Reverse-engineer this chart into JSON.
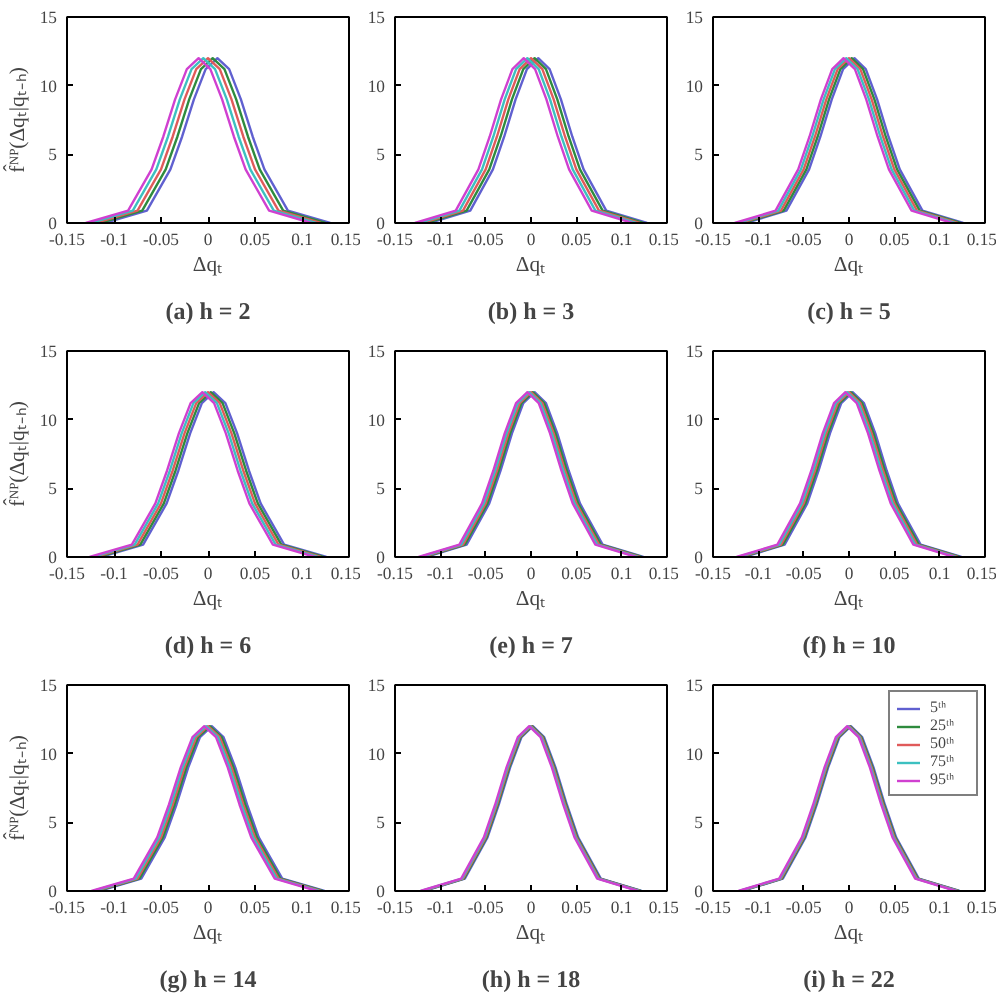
{
  "chart_data": [
    {
      "type": "line",
      "title": "(a)",
      "subtitle": "h = 2",
      "xlabel": "Δqₜ",
      "ylabel": "f̂ᴺᴾ(Δqₜ|qₜ₋ₕ)",
      "xlim": [
        -0.15,
        0.15
      ],
      "ylim": [
        0,
        15
      ],
      "xticks": [
        -0.15,
        -0.1,
        -0.05,
        0,
        0.05,
        0.1,
        0.15
      ],
      "yticks": [
        0,
        5,
        10,
        15
      ],
      "series": [
        {
          "color": "#6060d0",
          "x": [
            -0.11,
            -0.065,
            -0.04,
            -0.0275,
            -0.015,
            -0.0025,
            0.01,
            0.0225,
            0.035,
            0.0475,
            0.06,
            0.085,
            0.13
          ],
          "values": [
            0,
            0.9,
            3.9,
            6.3,
            9.0,
            11.2,
            12,
            11.2,
            9.0,
            6.3,
            3.9,
            0.9,
            0
          ]
        },
        {
          "color": "#2e8b3e",
          "x": [
            -0.115,
            -0.07,
            -0.045,
            -0.0325,
            -0.02,
            -0.0075,
            0.005,
            0.0175,
            0.03,
            0.0425,
            0.055,
            0.08,
            0.125
          ],
          "values": [
            0,
            0.9,
            3.9,
            6.3,
            9.0,
            11.2,
            12,
            11.2,
            9.0,
            6.3,
            3.9,
            0.9,
            0
          ]
        },
        {
          "color": "#e05a5a",
          "x": [
            -0.12,
            -0.075,
            -0.05,
            -0.0375,
            -0.025,
            -0.0125,
            0,
            0.0125,
            0.025,
            0.0375,
            0.05,
            0.075,
            0.12
          ],
          "values": [
            0,
            0.9,
            3.9,
            6.3,
            9.0,
            11.2,
            12,
            11.2,
            9.0,
            6.3,
            3.9,
            0.9,
            0
          ]
        },
        {
          "color": "#3cc0c0",
          "x": [
            -0.125,
            -0.08,
            -0.055,
            -0.0425,
            -0.03,
            -0.0175,
            -0.005,
            0.0075,
            0.02,
            0.0325,
            0.045,
            0.07,
            0.115
          ],
          "values": [
            0,
            0.9,
            3.9,
            6.3,
            9.0,
            11.2,
            12,
            11.2,
            9.0,
            6.3,
            3.9,
            0.9,
            0
          ]
        },
        {
          "color": "#d040d0",
          "x": [
            -0.13,
            -0.085,
            -0.06,
            -0.0475,
            -0.035,
            -0.0225,
            -0.01,
            0.0025,
            0.015,
            0.0275,
            0.04,
            0.065,
            0.11
          ],
          "values": [
            0,
            0.9,
            3.9,
            6.3,
            9.0,
            11.2,
            12,
            11.2,
            9.0,
            6.3,
            3.9,
            0.9,
            0
          ]
        }
      ]
    },
    {
      "type": "line",
      "title": "(b)",
      "subtitle": "h = 3",
      "xlabel": "Δqₜ",
      "xlim": [
        -0.15,
        0.15
      ],
      "ylim": [
        0,
        15
      ],
      "xticks": [
        -0.15,
        -0.1,
        -0.05,
        0,
        0.05,
        0.1,
        0.15
      ],
      "yticks": [
        0,
        5,
        10,
        15
      ],
      "series": [
        {
          "color": "#6060d0",
          "x": [
            -0.112,
            -0.067,
            -0.042,
            -0.0295,
            -0.017,
            -0.0045,
            0.008,
            0.0205,
            0.033,
            0.0455,
            0.058,
            0.083,
            0.128
          ],
          "values": [
            0,
            0.9,
            3.9,
            6.3,
            9.0,
            11.2,
            12,
            11.2,
            9.0,
            6.3,
            3.9,
            0.9,
            0
          ]
        },
        {
          "color": "#2e8b3e",
          "x": [
            -0.116,
            -0.071,
            -0.046,
            -0.0335,
            -0.021,
            -0.0085,
            0.004,
            0.0165,
            0.029,
            0.0415,
            0.054,
            0.079,
            0.124
          ],
          "values": [
            0,
            0.9,
            3.9,
            6.3,
            9.0,
            11.2,
            12,
            11.2,
            9.0,
            6.3,
            3.9,
            0.9,
            0
          ]
        },
        {
          "color": "#e05a5a",
          "x": [
            -0.12,
            -0.075,
            -0.05,
            -0.0375,
            -0.025,
            -0.0125,
            0,
            0.0125,
            0.025,
            0.0375,
            0.05,
            0.075,
            0.12
          ],
          "values": [
            0,
            0.9,
            3.9,
            6.3,
            9.0,
            11.2,
            12,
            11.2,
            9.0,
            6.3,
            3.9,
            0.9,
            0
          ]
        },
        {
          "color": "#3cc0c0",
          "x": [
            -0.124,
            -0.079,
            -0.054,
            -0.0415,
            -0.029,
            -0.0165,
            -0.004,
            0.0085,
            0.021,
            0.0335,
            0.046,
            0.071,
            0.116
          ],
          "values": [
            0,
            0.9,
            3.9,
            6.3,
            9.0,
            11.2,
            12,
            11.2,
            9.0,
            6.3,
            3.9,
            0.9,
            0
          ]
        },
        {
          "color": "#d040d0",
          "x": [
            -0.128,
            -0.083,
            -0.058,
            -0.0455,
            -0.033,
            -0.0205,
            -0.008,
            0.0045,
            0.017,
            0.0295,
            0.042,
            0.067,
            0.112
          ],
          "values": [
            0,
            0.9,
            3.9,
            6.3,
            9.0,
            11.2,
            12,
            11.2,
            9.0,
            6.3,
            3.9,
            0.9,
            0
          ]
        }
      ]
    },
    {
      "type": "line",
      "title": "(c)",
      "subtitle": "h = 5",
      "xlabel": "Δqₜ",
      "xlim": [
        -0.15,
        0.15
      ],
      "ylim": [
        0,
        15
      ],
      "xticks": [
        -0.15,
        -0.1,
        -0.05,
        0,
        0.05,
        0.1,
        0.15
      ],
      "yticks": [
        0,
        5,
        10,
        15
      ],
      "series": [
        {
          "color": "#6060d0",
          "x": [
            -0.114,
            -0.069,
            -0.044,
            -0.0315,
            -0.019,
            -0.0065,
            0.006,
            0.0185,
            0.031,
            0.0435,
            0.056,
            0.081,
            0.126
          ],
          "values": [
            0,
            0.9,
            3.9,
            6.3,
            9.0,
            11.2,
            12,
            11.2,
            9.0,
            6.3,
            3.9,
            0.9,
            0
          ]
        },
        {
          "color": "#2e8b3e",
          "x": [
            -0.117,
            -0.072,
            -0.047,
            -0.0345,
            -0.022,
            -0.0095,
            0.003,
            0.0155,
            0.028,
            0.0405,
            0.053,
            0.078,
            0.123
          ],
          "values": [
            0,
            0.9,
            3.9,
            6.3,
            9.0,
            11.2,
            12,
            11.2,
            9.0,
            6.3,
            3.9,
            0.9,
            0
          ]
        },
        {
          "color": "#e05a5a",
          "x": [
            -0.12,
            -0.075,
            -0.05,
            -0.0375,
            -0.025,
            -0.0125,
            0,
            0.0125,
            0.025,
            0.0375,
            0.05,
            0.075,
            0.12
          ],
          "values": [
            0,
            0.9,
            3.9,
            6.3,
            9.0,
            11.2,
            12,
            11.2,
            9.0,
            6.3,
            3.9,
            0.9,
            0
          ]
        },
        {
          "color": "#3cc0c0",
          "x": [
            -0.123,
            -0.078,
            -0.053,
            -0.0405,
            -0.028,
            -0.0155,
            -0.003,
            0.0095,
            0.022,
            0.0345,
            0.047,
            0.072,
            0.117
          ],
          "values": [
            0,
            0.9,
            3.9,
            6.3,
            9.0,
            11.2,
            12,
            11.2,
            9.0,
            6.3,
            3.9,
            0.9,
            0
          ]
        },
        {
          "color": "#d040d0",
          "x": [
            -0.126,
            -0.081,
            -0.056,
            -0.0435,
            -0.031,
            -0.0185,
            -0.006,
            0.0065,
            0.019,
            0.0315,
            0.044,
            0.069,
            0.114
          ],
          "values": [
            0,
            0.9,
            3.9,
            6.3,
            9.0,
            11.2,
            12,
            11.2,
            9.0,
            6.3,
            3.9,
            0.9,
            0
          ]
        }
      ]
    },
    {
      "type": "line",
      "title": "(d)",
      "subtitle": "h = 6",
      "xlabel": "Δqₜ",
      "ylabel": "f̂ᴺᴾ(Δqₜ|qₜ₋ₕ)",
      "xlim": [
        -0.15,
        0.15
      ],
      "ylim": [
        0,
        15
      ],
      "xticks": [
        -0.15,
        -0.1,
        -0.05,
        0,
        0.05,
        0.1,
        0.15
      ],
      "yticks": [
        0,
        5,
        10,
        15
      ],
      "series": [
        {
          "color": "#6060d0",
          "x": [
            -0.114,
            -0.069,
            -0.044,
            -0.0315,
            -0.019,
            -0.0065,
            0.006,
            0.0185,
            0.031,
            0.0435,
            0.056,
            0.081,
            0.126
          ],
          "values": [
            0,
            0.9,
            3.9,
            6.3,
            9.0,
            11.2,
            12,
            11.2,
            9.0,
            6.3,
            3.9,
            0.9,
            0
          ]
        },
        {
          "color": "#2e8b3e",
          "x": [
            -0.117,
            -0.072,
            -0.047,
            -0.0345,
            -0.022,
            -0.0095,
            0.003,
            0.0155,
            0.028,
            0.0405,
            0.053,
            0.078,
            0.123
          ],
          "values": [
            0,
            0.9,
            3.9,
            6.3,
            9.0,
            11.2,
            12,
            11.2,
            9.0,
            6.3,
            3.9,
            0.9,
            0
          ]
        },
        {
          "color": "#e05a5a",
          "x": [
            -0.12,
            -0.075,
            -0.05,
            -0.0375,
            -0.025,
            -0.0125,
            0,
            0.0125,
            0.025,
            0.0375,
            0.05,
            0.075,
            0.12
          ],
          "values": [
            0,
            0.9,
            3.9,
            6.3,
            9.0,
            11.2,
            12,
            11.2,
            9.0,
            6.3,
            3.9,
            0.9,
            0
          ]
        },
        {
          "color": "#3cc0c0",
          "x": [
            -0.123,
            -0.078,
            -0.053,
            -0.0405,
            -0.028,
            -0.0155,
            -0.003,
            0.0095,
            0.022,
            0.0345,
            0.047,
            0.072,
            0.117
          ],
          "values": [
            0,
            0.9,
            3.9,
            6.3,
            9.0,
            11.2,
            12,
            11.2,
            9.0,
            6.3,
            3.9,
            0.9,
            0
          ]
        },
        {
          "color": "#d040d0",
          "x": [
            -0.126,
            -0.081,
            -0.056,
            -0.0435,
            -0.031,
            -0.0185,
            -0.006,
            0.0065,
            0.019,
            0.0315,
            0.044,
            0.069,
            0.114
          ],
          "values": [
            0,
            0.9,
            3.9,
            6.3,
            9.0,
            11.2,
            12,
            11.2,
            9.0,
            6.3,
            3.9,
            0.9,
            0
          ]
        }
      ]
    },
    {
      "type": "line",
      "title": "(e)",
      "subtitle": "h = 7",
      "xlabel": "Δqₜ",
      "xlim": [
        -0.15,
        0.15
      ],
      "ylim": [
        0,
        15
      ],
      "xticks": [
        -0.15,
        -0.1,
        -0.05,
        0,
        0.05,
        0.1,
        0.15
      ],
      "yticks": [
        0,
        5,
        10,
        15
      ],
      "series": [
        {
          "color": "#6060d0",
          "x": [
            -0.116,
            -0.071,
            -0.046,
            -0.0335,
            -0.021,
            -0.0085,
            0.004,
            0.0165,
            0.029,
            0.0415,
            0.054,
            0.079,
            0.124
          ],
          "values": [
            0,
            0.9,
            3.9,
            6.3,
            9.0,
            11.2,
            12,
            11.2,
            9.0,
            6.3,
            3.9,
            0.9,
            0
          ]
        },
        {
          "color": "#2e8b3e",
          "x": [
            -0.118,
            -0.073,
            -0.048,
            -0.0355,
            -0.023,
            -0.0105,
            0.002,
            0.0145,
            0.027,
            0.0395,
            0.052,
            0.077,
            0.122
          ],
          "values": [
            0,
            0.9,
            3.9,
            6.3,
            9.0,
            11.2,
            12,
            11.2,
            9.0,
            6.3,
            3.9,
            0.9,
            0
          ]
        },
        {
          "color": "#e05a5a",
          "x": [
            -0.12,
            -0.075,
            -0.05,
            -0.0375,
            -0.025,
            -0.0125,
            0,
            0.0125,
            0.025,
            0.0375,
            0.05,
            0.075,
            0.12
          ],
          "values": [
            0,
            0.9,
            3.9,
            6.3,
            9.0,
            11.2,
            12,
            11.2,
            9.0,
            6.3,
            3.9,
            0.9,
            0
          ]
        },
        {
          "color": "#3cc0c0",
          "x": [
            -0.122,
            -0.077,
            -0.052,
            -0.0395,
            -0.027,
            -0.0145,
            -0.002,
            0.0105,
            0.023,
            0.0355,
            0.048,
            0.073,
            0.118
          ],
          "values": [
            0,
            0.9,
            3.9,
            6.3,
            9.0,
            11.2,
            12,
            11.2,
            9.0,
            6.3,
            3.9,
            0.9,
            0
          ]
        },
        {
          "color": "#d040d0",
          "x": [
            -0.124,
            -0.079,
            -0.054,
            -0.0415,
            -0.029,
            -0.0165,
            -0.004,
            0.0085,
            0.021,
            0.0335,
            0.046,
            0.071,
            0.116
          ],
          "values": [
            0,
            0.9,
            3.9,
            6.3,
            9.0,
            11.2,
            12,
            11.2,
            9.0,
            6.3,
            3.9,
            0.9,
            0
          ]
        }
      ]
    },
    {
      "type": "line",
      "title": "(f)",
      "subtitle": "h = 10",
      "xlabel": "Δqₜ",
      "xlim": [
        -0.15,
        0.15
      ],
      "ylim": [
        0,
        15
      ],
      "xticks": [
        -0.15,
        -0.1,
        -0.05,
        0,
        0.05,
        0.1,
        0.15
      ],
      "yticks": [
        0,
        5,
        10,
        15
      ],
      "series": [
        {
          "color": "#6060d0",
          "x": [
            -0.116,
            -0.071,
            -0.046,
            -0.0335,
            -0.021,
            -0.0085,
            0.004,
            0.0165,
            0.029,
            0.0415,
            0.054,
            0.079,
            0.124
          ],
          "values": [
            0,
            0.9,
            3.9,
            6.3,
            9.0,
            11.2,
            12,
            11.2,
            9.0,
            6.3,
            3.9,
            0.9,
            0
          ]
        },
        {
          "color": "#2e8b3e",
          "x": [
            -0.118,
            -0.073,
            -0.048,
            -0.0355,
            -0.023,
            -0.0105,
            0.002,
            0.0145,
            0.027,
            0.0395,
            0.052,
            0.077,
            0.122
          ],
          "values": [
            0,
            0.9,
            3.9,
            6.3,
            9.0,
            11.2,
            12,
            11.2,
            9.0,
            6.3,
            3.9,
            0.9,
            0
          ]
        },
        {
          "color": "#e05a5a",
          "x": [
            -0.12,
            -0.075,
            -0.05,
            -0.0375,
            -0.025,
            -0.0125,
            0,
            0.0125,
            0.025,
            0.0375,
            0.05,
            0.075,
            0.12
          ],
          "values": [
            0,
            0.9,
            3.9,
            6.3,
            9.0,
            11.2,
            12,
            11.2,
            9.0,
            6.3,
            3.9,
            0.9,
            0
          ]
        },
        {
          "color": "#3cc0c0",
          "x": [
            -0.122,
            -0.077,
            -0.052,
            -0.0395,
            -0.027,
            -0.0145,
            -0.002,
            0.0105,
            0.023,
            0.0355,
            0.048,
            0.073,
            0.118
          ],
          "values": [
            0,
            0.9,
            3.9,
            6.3,
            9.0,
            11.2,
            12,
            11.2,
            9.0,
            6.3,
            3.9,
            0.9,
            0
          ]
        },
        {
          "color": "#d040d0",
          "x": [
            -0.124,
            -0.079,
            -0.054,
            -0.0415,
            -0.029,
            -0.0165,
            -0.004,
            0.0085,
            0.021,
            0.0335,
            0.046,
            0.071,
            0.116
          ],
          "values": [
            0,
            0.9,
            3.9,
            6.3,
            9.0,
            11.2,
            12,
            11.2,
            9.0,
            6.3,
            3.9,
            0.9,
            0
          ]
        }
      ]
    },
    {
      "type": "line",
      "title": "(g)",
      "subtitle": "h = 14",
      "xlabel": "Δqₜ",
      "ylabel": "f̂ᴺᴾ(Δqₜ|qₜ₋ₕ)",
      "xlim": [
        -0.15,
        0.15
      ],
      "ylim": [
        0,
        15
      ],
      "xticks": [
        -0.15,
        -0.1,
        -0.05,
        0,
        0.05,
        0.1,
        0.15
      ],
      "yticks": [
        0,
        5,
        10,
        15
      ],
      "series": [
        {
          "color": "#6060d0",
          "x": [
            -0.116,
            -0.071,
            -0.046,
            -0.0335,
            -0.021,
            -0.0085,
            0.004,
            0.0165,
            0.029,
            0.0415,
            0.054,
            0.079,
            0.124
          ],
          "values": [
            0,
            0.9,
            3.9,
            6.3,
            9.0,
            11.2,
            12,
            11.2,
            9.0,
            6.3,
            3.9,
            0.9,
            0
          ]
        },
        {
          "color": "#2e8b3e",
          "x": [
            -0.118,
            -0.073,
            -0.048,
            -0.0355,
            -0.023,
            -0.0105,
            0.002,
            0.0145,
            0.027,
            0.0395,
            0.052,
            0.077,
            0.122
          ],
          "values": [
            0,
            0.9,
            3.9,
            6.3,
            9.0,
            11.2,
            12,
            11.2,
            9.0,
            6.3,
            3.9,
            0.9,
            0
          ]
        },
        {
          "color": "#e05a5a",
          "x": [
            -0.12,
            -0.075,
            -0.05,
            -0.0375,
            -0.025,
            -0.0125,
            0,
            0.0125,
            0.025,
            0.0375,
            0.05,
            0.075,
            0.12
          ],
          "values": [
            0,
            0.9,
            3.9,
            6.3,
            9.0,
            11.2,
            12,
            11.2,
            9.0,
            6.3,
            3.9,
            0.9,
            0
          ]
        },
        {
          "color": "#3cc0c0",
          "x": [
            -0.122,
            -0.077,
            -0.052,
            -0.0395,
            -0.027,
            -0.0145,
            -0.002,
            0.0105,
            0.023,
            0.0355,
            0.048,
            0.073,
            0.118
          ],
          "values": [
            0,
            0.9,
            3.9,
            6.3,
            9.0,
            11.2,
            12,
            11.2,
            9.0,
            6.3,
            3.9,
            0.9,
            0
          ]
        },
        {
          "color": "#d040d0",
          "x": [
            -0.124,
            -0.079,
            -0.054,
            -0.0415,
            -0.029,
            -0.0165,
            -0.004,
            0.0085,
            0.021,
            0.0335,
            0.046,
            0.071,
            0.116
          ],
          "values": [
            0,
            0.9,
            3.9,
            6.3,
            9.0,
            11.2,
            12,
            11.2,
            9.0,
            6.3,
            3.9,
            0.9,
            0
          ]
        }
      ]
    },
    {
      "type": "line",
      "title": "(h)",
      "subtitle": "h = 18",
      "xlabel": "Δqₜ",
      "xlim": [
        -0.15,
        0.15
      ],
      "ylim": [
        0,
        15
      ],
      "xticks": [
        -0.15,
        -0.1,
        -0.05,
        0,
        0.05,
        0.1,
        0.15
      ],
      "yticks": [
        0,
        5,
        10,
        15
      ],
      "series": [
        {
          "color": "#6060d0",
          "x": [
            -0.118,
            -0.073,
            -0.048,
            -0.0355,
            -0.023,
            -0.0105,
            0.002,
            0.0145,
            0.027,
            0.0395,
            0.052,
            0.077,
            0.122
          ],
          "values": [
            0,
            0.9,
            3.9,
            6.3,
            9.0,
            11.2,
            12,
            11.2,
            9.0,
            6.3,
            3.9,
            0.9,
            0
          ]
        },
        {
          "color": "#2e8b3e",
          "x": [
            -0.119,
            -0.074,
            -0.049,
            -0.0365,
            -0.024,
            -0.0115,
            0.001,
            0.0135,
            0.026,
            0.0385,
            0.051,
            0.076,
            0.121
          ],
          "values": [
            0,
            0.9,
            3.9,
            6.3,
            9.0,
            11.2,
            12,
            11.2,
            9.0,
            6.3,
            3.9,
            0.9,
            0
          ]
        },
        {
          "color": "#e05a5a",
          "x": [
            -0.12,
            -0.075,
            -0.05,
            -0.0375,
            -0.025,
            -0.0125,
            0,
            0.0125,
            0.025,
            0.0375,
            0.05,
            0.075,
            0.12
          ],
          "values": [
            0,
            0.9,
            3.9,
            6.3,
            9.0,
            11.2,
            12,
            11.2,
            9.0,
            6.3,
            3.9,
            0.9,
            0
          ]
        },
        {
          "color": "#3cc0c0",
          "x": [
            -0.121,
            -0.076,
            -0.051,
            -0.0385,
            -0.026,
            -0.0135,
            -0.001,
            0.0115,
            0.024,
            0.0365,
            0.049,
            0.074,
            0.119
          ],
          "values": [
            0,
            0.9,
            3.9,
            6.3,
            9.0,
            11.2,
            12,
            11.2,
            9.0,
            6.3,
            3.9,
            0.9,
            0
          ]
        },
        {
          "color": "#d040d0",
          "x": [
            -0.122,
            -0.077,
            -0.052,
            -0.0395,
            -0.027,
            -0.0145,
            -0.002,
            0.0105,
            0.023,
            0.0355,
            0.048,
            0.073,
            0.118
          ],
          "values": [
            0,
            0.9,
            3.9,
            6.3,
            9.0,
            11.2,
            12,
            11.2,
            9.0,
            6.3,
            3.9,
            0.9,
            0
          ]
        }
      ]
    },
    {
      "type": "line",
      "title": "(i)",
      "subtitle": "h = 22",
      "xlabel": "Δqₜ",
      "xlim": [
        -0.15,
        0.15
      ],
      "ylim": [
        0,
        15
      ],
      "xticks": [
        -0.15,
        -0.1,
        -0.05,
        0,
        0.05,
        0.1,
        0.15
      ],
      "yticks": [
        0,
        5,
        10,
        15
      ],
      "legend": "top right",
      "series": [
        {
          "name": "5ᵗʰ",
          "color": "#6060d0",
          "x": [
            -0.118,
            -0.073,
            -0.048,
            -0.0355,
            -0.023,
            -0.0105,
            0.002,
            0.0145,
            0.027,
            0.0395,
            0.052,
            0.077,
            0.122
          ],
          "values": [
            0,
            0.9,
            3.9,
            6.3,
            9.0,
            11.2,
            12,
            11.2,
            9.0,
            6.3,
            3.9,
            0.9,
            0
          ]
        },
        {
          "name": "25ᵗʰ",
          "color": "#2e8b3e",
          "x": [
            -0.119,
            -0.074,
            -0.049,
            -0.0365,
            -0.024,
            -0.0115,
            0.001,
            0.0135,
            0.026,
            0.0385,
            0.051,
            0.076,
            0.121
          ],
          "values": [
            0,
            0.9,
            3.9,
            6.3,
            9.0,
            11.2,
            12,
            11.2,
            9.0,
            6.3,
            3.9,
            0.9,
            0
          ]
        },
        {
          "name": "50ᵗʰ",
          "color": "#e05a5a",
          "x": [
            -0.12,
            -0.075,
            -0.05,
            -0.0375,
            -0.025,
            -0.0125,
            0,
            0.0125,
            0.025,
            0.0375,
            0.05,
            0.075,
            0.12
          ],
          "values": [
            0,
            0.9,
            3.9,
            6.3,
            9.0,
            11.2,
            12,
            11.2,
            9.0,
            6.3,
            3.9,
            0.9,
            0
          ]
        },
        {
          "name": "75ᵗʰ",
          "color": "#3cc0c0",
          "x": [
            -0.121,
            -0.076,
            -0.051,
            -0.0385,
            -0.026,
            -0.0135,
            -0.001,
            0.0115,
            0.024,
            0.0365,
            0.049,
            0.074,
            0.119
          ],
          "values": [
            0,
            0.9,
            3.9,
            6.3,
            9.0,
            11.2,
            12,
            11.2,
            9.0,
            6.3,
            3.9,
            0.9,
            0
          ]
        },
        {
          "name": "95ᵗʰ",
          "color": "#d040d0",
          "x": [
            -0.122,
            -0.077,
            -0.052,
            -0.0395,
            -0.027,
            -0.0145,
            -0.002,
            0.0105,
            0.023,
            0.0355,
            0.048,
            0.073,
            0.118
          ],
          "values": [
            0,
            0.9,
            3.9,
            6.3,
            9.0,
            11.2,
            12,
            11.2,
            9.0,
            6.3,
            3.9,
            0.9,
            0
          ]
        }
      ]
    }
  ]
}
